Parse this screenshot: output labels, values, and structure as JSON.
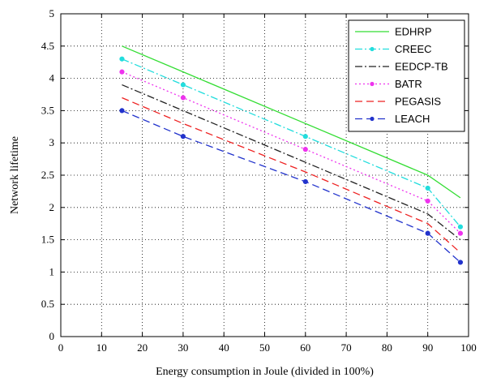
{
  "chart_data": {
    "type": "line",
    "title": "",
    "xlabel": "Energy consumption in Joule (divided in 100%)",
    "ylabel": "Network lifetime",
    "xlim": [
      0,
      100
    ],
    "ylim": [
      0,
      5
    ],
    "xticks": [
      "0",
      "10",
      "20",
      "30",
      "40",
      "50",
      "60",
      "70",
      "80",
      "90",
      "100"
    ],
    "yticks": [
      "0",
      "0.5",
      "1",
      "1.5",
      "2",
      "2.5",
      "3",
      "3.5",
      "4",
      "4.5",
      "5"
    ],
    "grid": true,
    "legend_position": "top-right",
    "x": [
      15,
      30,
      60,
      90,
      98
    ],
    "series": [
      {
        "name": "EDHRP",
        "values": [
          4.5,
          4.1,
          3.3,
          2.5,
          2.15
        ],
        "color": "#33dd33",
        "dash": "solid",
        "marker": "none"
      },
      {
        "name": "CREEC",
        "values": [
          4.3,
          3.9,
          3.1,
          2.3,
          1.7
        ],
        "color": "#22dddd",
        "dash": "dashdot",
        "marker": "dot"
      },
      {
        "name": "EEDCP-TB",
        "values": [
          3.9,
          3.5,
          2.7,
          1.9,
          1.5
        ],
        "color": "#222222",
        "dash": "dashdot",
        "marker": "none"
      },
      {
        "name": "BATR",
        "values": [
          4.1,
          3.7,
          2.9,
          2.1,
          1.6
        ],
        "color": "#ee33ee",
        "dash": "dotted",
        "marker": "dot"
      },
      {
        "name": "PEGASIS",
        "values": [
          3.7,
          3.3,
          2.55,
          1.75,
          1.3
        ],
        "color": "#ee2222",
        "dash": "dashed",
        "marker": "none"
      },
      {
        "name": "LEACH",
        "values": [
          3.5,
          3.1,
          2.4,
          1.6,
          1.15
        ],
        "color": "#2233cc",
        "dash": "dashed",
        "marker": "dot"
      }
    ]
  }
}
